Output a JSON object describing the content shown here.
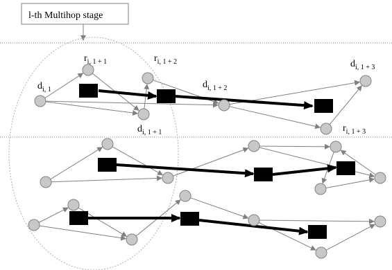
{
  "callout": {
    "text": "l-th Multihop stage"
  },
  "labels": {
    "d_i1": {
      "main": "d",
      "sub": "i, 1"
    },
    "r_i11": {
      "main": "r",
      "sub": "i, 1 + 1"
    },
    "r_i12": {
      "main": "r",
      "sub": "i, 1 + 2"
    },
    "d_i12": {
      "main": "d",
      "sub": "i, 1 + 2"
    },
    "d_i13": {
      "main": "d",
      "sub": "i, 1 + 3"
    },
    "d_i11": {
      "main": "d",
      "sub": "i, 1 + 1"
    },
    "r_i13": {
      "main": "r",
      "sub": "i, 1 + 3"
    }
  },
  "colors": {
    "node_fill": "#c8c8c8",
    "node_stroke": "#808080",
    "link": "#808080",
    "flow": "#000000",
    "block": "#000000",
    "divider": "#808080",
    "ellipse": "#b0b0b0"
  }
}
